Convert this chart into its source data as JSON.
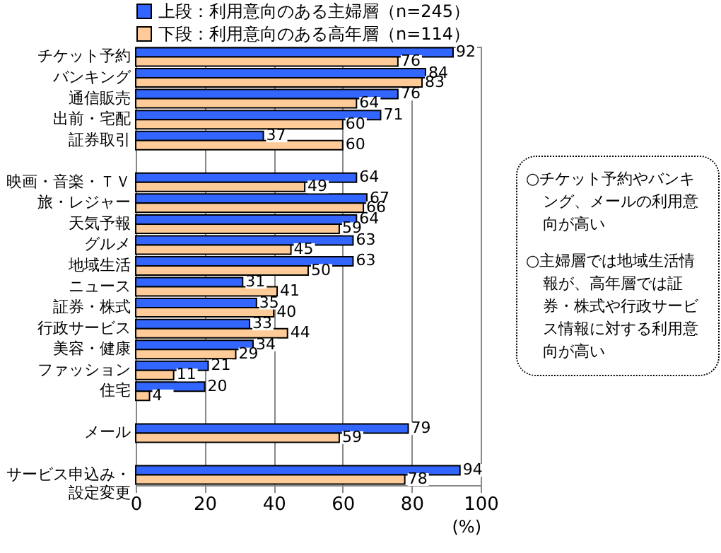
{
  "chart_data": {
    "type": "bar",
    "orientation": "horizontal",
    "xlabel": "(%)",
    "categories": [
      "チケット予約",
      "バンキング",
      "通信販売",
      "出前・宅配",
      "証券取引",
      null,
      "映画・音楽・ＴＶ",
      "旅・レジャー",
      "天気予報",
      "グルメ",
      "地域生活",
      "ニュース",
      "証券・株式",
      "行政サービス",
      "美容・健康",
      "ファッション",
      "住宅",
      null,
      "メール",
      null,
      "サービス申込み・設定変更"
    ],
    "series": [
      {
        "name": "上段：利用意向のある主婦層（n=245）",
        "color": "#3366ff",
        "values": [
          92,
          84,
          76,
          71,
          37,
          null,
          64,
          67,
          64,
          63,
          63,
          31,
          35,
          33,
          34,
          21,
          20,
          null,
          79,
          null,
          94
        ]
      },
      {
        "name": "下段：利用意向のある高年層（n=114）",
        "color": "#ffcc99",
        "values": [
          76,
          83,
          64,
          60,
          60,
          null,
          49,
          66,
          59,
          45,
          50,
          41,
          40,
          44,
          29,
          11,
          4,
          null,
          59,
          null,
          78
        ]
      }
    ],
    "xlim": [
      0,
      100
    ],
    "xticks": [
      0,
      20,
      40,
      60,
      80,
      100
    ],
    "grid": "x",
    "legend": "top",
    "data_labels": true,
    "annotations": [
      "○チケット予約やバンキング、メールの利用意向が高い",
      "○主婦層では地域生活情報が、高年層では証券・株式や行政サービス情報に対する利用意向が高い"
    ]
  }
}
